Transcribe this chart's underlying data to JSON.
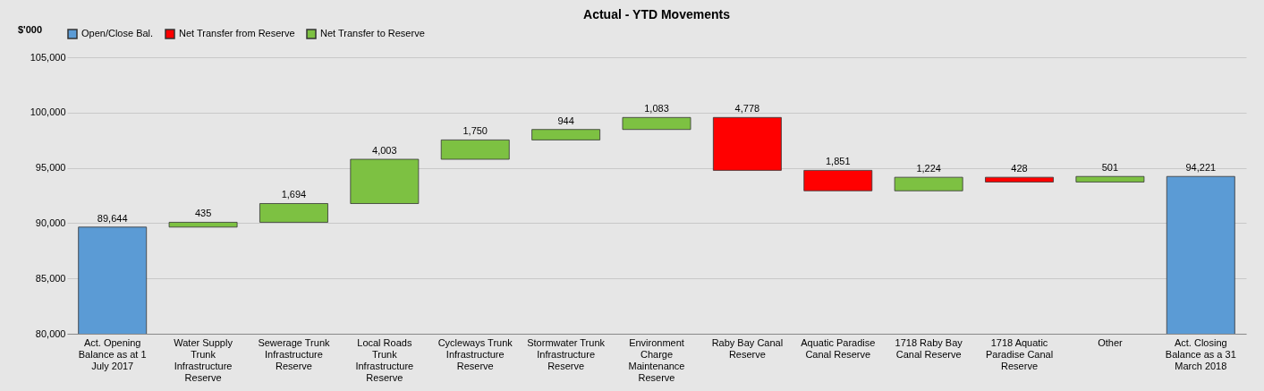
{
  "chart_data": {
    "type": "bar",
    "title": "Actual  -  YTD Movements",
    "ylabel": "$'000",
    "categories": [
      "Act. Opening Balance as at 1 July 2017",
      "Water Supply Trunk Infrastructure Reserve",
      "Sewerage Trunk Infrastructure Reserve",
      "Local Roads Trunk Infrastructure Reserve",
      "Cycleways Trunk Infrastructure Reserve",
      "Stormwater Trunk Infrastructure Reserve",
      "Environment Charge Maintenance Reserve",
      "Raby Bay Canal Reserve",
      "Aquatic Paradise Canal Reserve",
      "1718 Raby Bay Canal Reserve",
      "1718 Aquatic Paradise Canal Reserve",
      "Other",
      "Act. Closing Balance as a 31 March 2018"
    ],
    "series": [
      {
        "name": "Open/Close Bal.",
        "color": "#5b9bd5",
        "values": [
          89644,
          null,
          null,
          null,
          null,
          null,
          null,
          null,
          null,
          null,
          null,
          null,
          94221
        ],
        "base": [
          0,
          null,
          null,
          null,
          null,
          null,
          null,
          null,
          null,
          null,
          null,
          null,
          0
        ],
        "value_labels": [
          "89,644",
          null,
          null,
          null,
          null,
          null,
          null,
          null,
          null,
          null,
          null,
          null,
          "94,221"
        ]
      },
      {
        "name": "Net Transfer from Reserve",
        "color": "#ff0000",
        "values": [
          null,
          null,
          null,
          null,
          null,
          null,
          null,
          -4778,
          -1851,
          null,
          -428,
          null,
          null
        ],
        "base": [
          null,
          null,
          null,
          null,
          null,
          null,
          null,
          99553,
          94775,
          null,
          94148,
          null,
          null
        ],
        "value_labels": [
          null,
          null,
          null,
          null,
          null,
          null,
          null,
          "4,778",
          "1,851",
          null,
          "428",
          null,
          null
        ]
      },
      {
        "name": "Net Transfer to Reserve",
        "color": "#7dc142",
        "values": [
          null,
          435,
          1694,
          4003,
          1750,
          944,
          1083,
          null,
          null,
          1224,
          null,
          501,
          null
        ],
        "base": [
          null,
          89644,
          90079,
          91773,
          95776,
          97526,
          98470,
          null,
          null,
          92924,
          null,
          93720,
          null
        ],
        "value_labels": [
          null,
          "435",
          "1,694",
          "4,003",
          "1,750",
          "944",
          "1,083",
          null,
          null,
          "1,224",
          null,
          "501",
          null
        ]
      }
    ],
    "ylim": [
      80000,
      105000
    ],
    "yticks": [
      {
        "value": 80000,
        "label": "80,000"
      },
      {
        "value": 85000,
        "label": "85,000"
      },
      {
        "value": 90000,
        "label": "90,000"
      },
      {
        "value": 95000,
        "label": "95,000"
      },
      {
        "value": 100000,
        "label": "100,000"
      },
      {
        "value": 105000,
        "label": "105,000"
      }
    ],
    "grid": "y",
    "legend": "top"
  }
}
